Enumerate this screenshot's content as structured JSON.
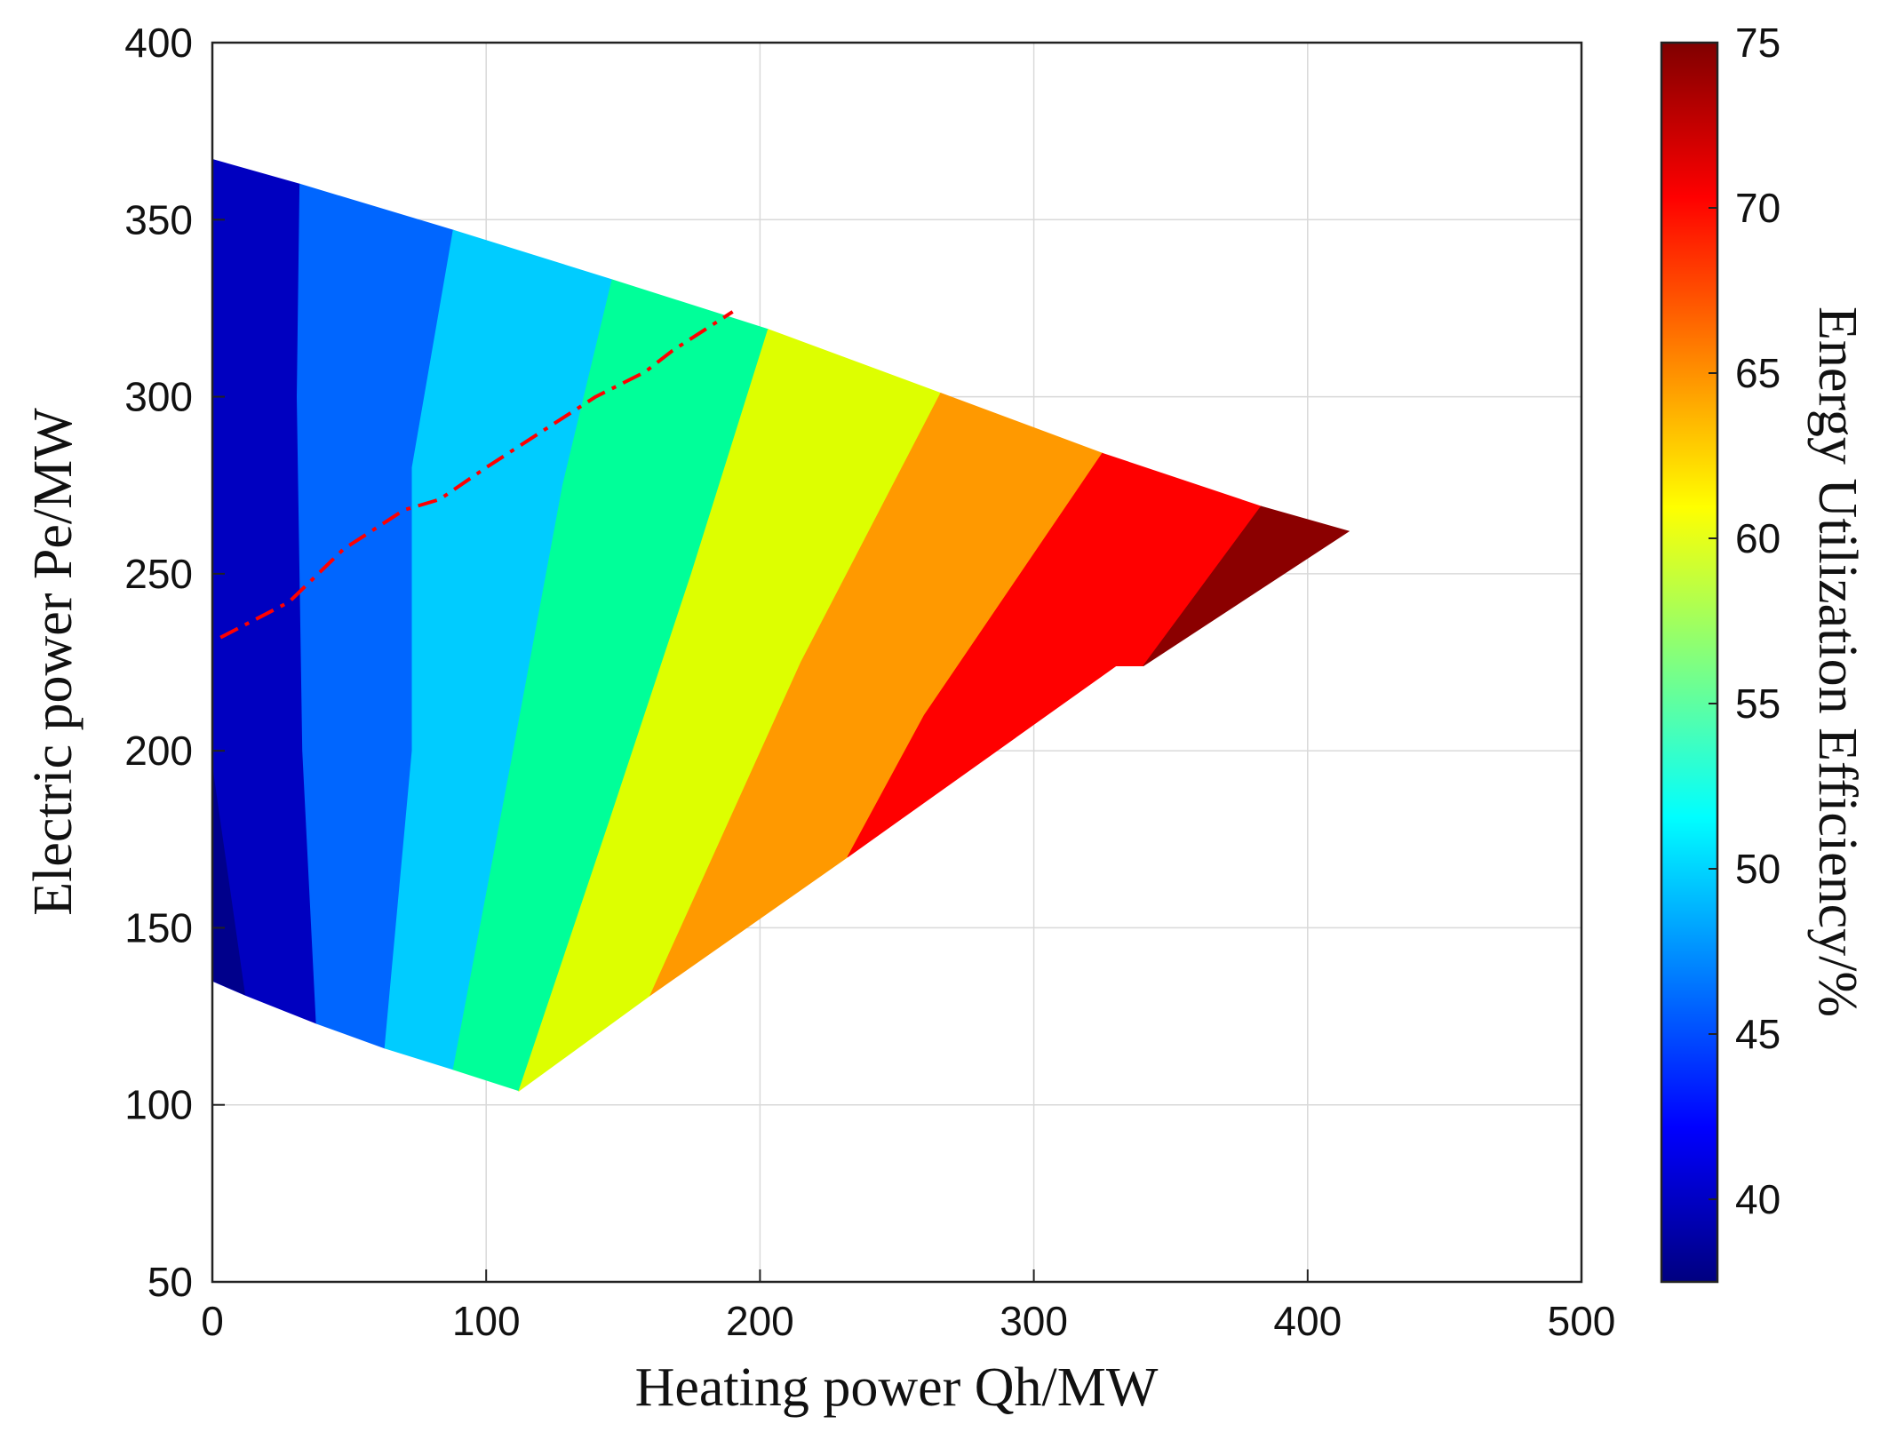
{
  "chart_data": {
    "type": "heatmap",
    "xlabel": "Heating power  Qh/MW",
    "ylabel": "Electric power  Pe/MW",
    "colorbar_label": "Energy Utilization Efficiency/%",
    "xlim": [
      0,
      500
    ],
    "ylim": [
      50,
      400
    ],
    "x_ticks": [
      0,
      100,
      200,
      300,
      400,
      500
    ],
    "y_ticks": [
      50,
      100,
      150,
      200,
      250,
      300,
      350,
      400
    ],
    "colorbar_range": [
      37.5,
      75
    ],
    "colorbar_ticks": [
      40,
      45,
      50,
      55,
      60,
      65,
      70,
      75
    ],
    "grid": true,
    "colormap": "jet",
    "region_boundary": [
      [
        0,
        367
      ],
      [
        32,
        360
      ],
      [
        88,
        347
      ],
      [
        146,
        333
      ],
      [
        190,
        323
      ],
      [
        203,
        319
      ],
      [
        266,
        301
      ],
      [
        325,
        284
      ],
      [
        383,
        269
      ],
      [
        415,
        262
      ],
      [
        330,
        224
      ],
      [
        232,
        170
      ],
      [
        160,
        131
      ],
      [
        112,
        104
      ],
      [
        88,
        110
      ],
      [
        63,
        116
      ],
      [
        38,
        123
      ],
      [
        12,
        131
      ],
      [
        0,
        135
      ]
    ],
    "bands": [
      {
        "level": 40,
        "color": "#0000c0",
        "polygon": [
          [
            0,
            367
          ],
          [
            32,
            360
          ],
          [
            31,
            300
          ],
          [
            33,
            200
          ],
          [
            38,
            123
          ],
          [
            12,
            131
          ],
          [
            0,
            135
          ]
        ]
      },
      {
        "level": 45,
        "color": "#0066ff",
        "polygon": [
          [
            32,
            360
          ],
          [
            88,
            347
          ],
          [
            73,
            280
          ],
          [
            73,
            200
          ],
          [
            63,
            116
          ],
          [
            38,
            123
          ],
          [
            33,
            200
          ],
          [
            31,
            300
          ]
        ]
      },
      {
        "level": 50,
        "color": "#00ccff",
        "polygon": [
          [
            88,
            347
          ],
          [
            146,
            333
          ],
          [
            128,
            275
          ],
          [
            110,
            200
          ],
          [
            88,
            110
          ],
          [
            63,
            116
          ],
          [
            73,
            200
          ],
          [
            73,
            280
          ]
        ]
      },
      {
        "level": 55,
        "color": "#00ff99",
        "polygon": [
          [
            146,
            333
          ],
          [
            203,
            319
          ],
          [
            175,
            250
          ],
          [
            145,
            180
          ],
          [
            112,
            104
          ],
          [
            88,
            110
          ],
          [
            110,
            200
          ],
          [
            128,
            275
          ]
        ]
      },
      {
        "level": 60,
        "color": "#ddff00",
        "polygon": [
          [
            203,
            319
          ],
          [
            266,
            301
          ],
          [
            215,
            225
          ],
          [
            160,
            131
          ],
          [
            112,
            104
          ],
          [
            145,
            180
          ],
          [
            175,
            250
          ]
        ]
      },
      {
        "level": 65,
        "color": "#ff9900",
        "polygon": [
          [
            266,
            301
          ],
          [
            325,
            284
          ],
          [
            260,
            210
          ],
          [
            232,
            170
          ],
          [
            160,
            131
          ],
          [
            215,
            225
          ]
        ]
      },
      {
        "level": 70,
        "color": "#ff0000",
        "polygon": [
          [
            325,
            284
          ],
          [
            383,
            269
          ],
          [
            340,
            224
          ],
          [
            330,
            224
          ],
          [
            232,
            170
          ],
          [
            260,
            210
          ]
        ]
      },
      {
        "level": 75,
        "color": "#8b0000",
        "polygon": [
          [
            383,
            269
          ],
          [
            415,
            262
          ],
          [
            340,
            224
          ]
        ]
      }
    ],
    "dark_corner": {
      "color": "#00008b",
      "polygon": [
        [
          0,
          196
        ],
        [
          0,
          135
        ],
        [
          12,
          131
        ]
      ]
    },
    "optimal_line": {
      "color": "#ff0000",
      "style": "dash-dot",
      "points": [
        [
          3,
          232
        ],
        [
          28,
          242
        ],
        [
          48,
          257
        ],
        [
          70,
          268
        ],
        [
          83,
          271
        ],
        [
          100,
          280
        ],
        [
          120,
          290
        ],
        [
          140,
          300
        ],
        [
          158,
          307
        ],
        [
          168,
          313
        ],
        [
          190,
          324
        ]
      ]
    }
  }
}
